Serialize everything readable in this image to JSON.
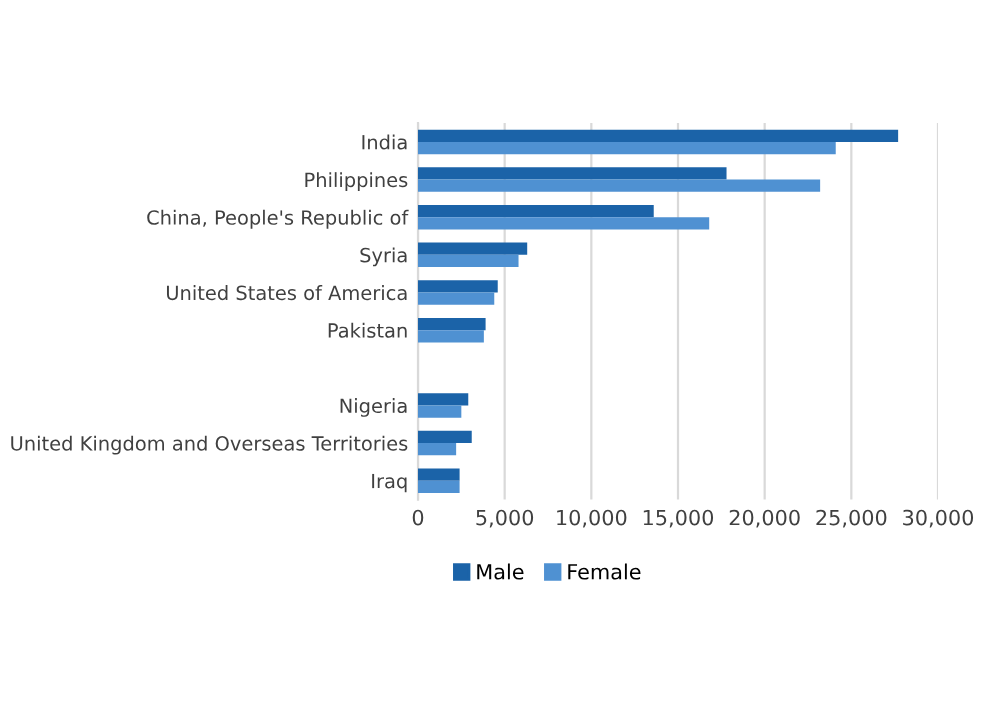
{
  "chart_data": {
    "type": "bar",
    "orientation": "horizontal",
    "categories": [
      "India",
      "Philippines",
      "China, People's Republic of",
      "Syria",
      "United States of America",
      "Pakistan",
      null,
      "Nigeria",
      "United Kingdom and Overseas Territories",
      "Iraq"
    ],
    "series": [
      {
        "name": "Male",
        "color": "#1b63a8",
        "values": [
          27700,
          17800,
          13600,
          6300,
          4600,
          3900,
          null,
          2900,
          3100,
          2400
        ]
      },
      {
        "name": "Female",
        "color": "#4f91d2",
        "values": [
          24100,
          23200,
          16800,
          5800,
          4400,
          3800,
          null,
          2500,
          2200,
          2400
        ]
      }
    ],
    "xlim": [
      0,
      30000
    ],
    "xticks": [
      0,
      {
        "value": 5000,
        "label": "5,000"
      },
      {
        "value": 10000,
        "label": "10,000"
      },
      {
        "value": 15000,
        "label": "15,000"
      },
      {
        "value": 20000,
        "label": "20,000"
      },
      {
        "value": 25000,
        "label": "25,000"
      },
      {
        "value": 30000,
        "label": "30,000"
      }
    ],
    "grid": "x",
    "legend": "bottom"
  }
}
